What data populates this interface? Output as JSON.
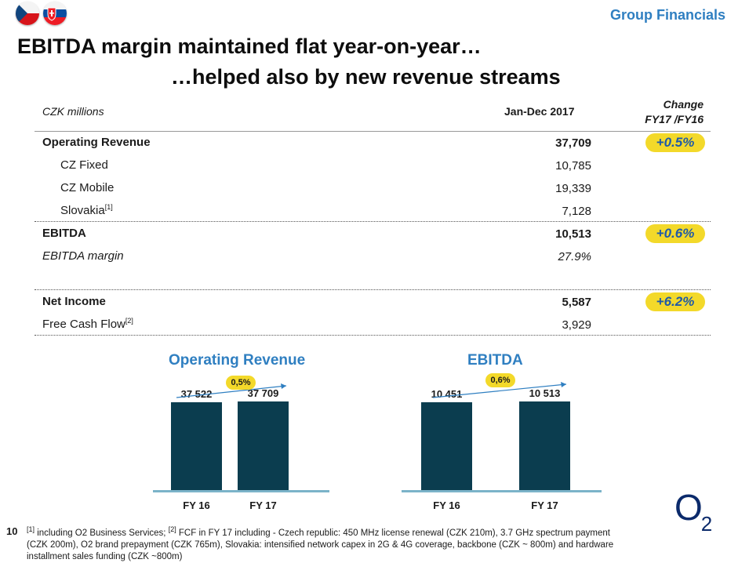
{
  "header": {
    "section": "Group Financials",
    "title_line1": "EBITDA margin maintained flat year-on-year…",
    "title_line2": "…helped also by new revenue streams"
  },
  "table": {
    "col_label": "CZK millions",
    "col_value": "Jan-Dec 2017",
    "col_change_line1": "Change",
    "col_change_line2": "FY17 /FY16",
    "rows": [
      {
        "label": "Operating Revenue",
        "value": "37,709",
        "change": "+0.5%"
      },
      {
        "label": "CZ Fixed",
        "value": "10,785"
      },
      {
        "label": "CZ Mobile",
        "value": "19,339"
      },
      {
        "label": "Slovakia",
        "sup": "[1]",
        "value": "7,128"
      },
      {
        "label": "EBITDA",
        "value": "10,513",
        "change": "+0.6%"
      },
      {
        "label": "EBITDA margin",
        "value": "27.9%"
      },
      {
        "label": "Net Income",
        "value": "5,587",
        "change": "+6.2%"
      },
      {
        "label": "Free Cash Flow",
        "sup": "[2]",
        "value": "3,929"
      }
    ]
  },
  "chart_data": [
    {
      "type": "bar",
      "title": "Operating Revenue",
      "categories": [
        "FY 16",
        "FY 17"
      ],
      "values": [
        37522,
        37709
      ],
      "value_labels": [
        "37 522",
        "37 709"
      ],
      "growth_label": "0,5%"
    },
    {
      "type": "bar",
      "title": "EBITDA",
      "categories": [
        "FY 16",
        "FY 17"
      ],
      "values": [
        10451,
        10513
      ],
      "value_labels": [
        "10 451",
        "10 513"
      ],
      "growth_label": "0,6%"
    }
  ],
  "footer": {
    "page_number": "10",
    "note1_marker": "[1]",
    "note1": " including O2 Business Services; ",
    "note2_marker": "[2]",
    "note2": " FCF in FY 17 including - Czech republic: 450 MHz license renewal (CZK 210m), 3.7 GHz spectrum payment (CZK 200m), O2 brand prepayment (CZK 765m), Slovakia: intensified network capex in 2G & 4G coverage, backbone (CZK ~ 800m) and hardware installment sales funding (CZK ~800m)",
    "logo_text": "O",
    "logo_sub": "2"
  },
  "colors": {
    "accent": "#2f7fc1",
    "bar": "#0b3d4f",
    "badge": "#f3d92a"
  }
}
